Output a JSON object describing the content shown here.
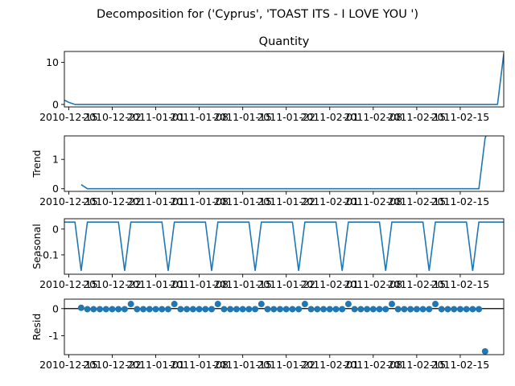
{
  "figure": {
    "suptitle": "Decomposition for ('Cyprus', 'TOAST ITS - I LOVE YOU ')",
    "series_color": "#1f77b4"
  },
  "chart_data": [
    {
      "type": "line",
      "title": "Quantity",
      "ylabel": "",
      "ylim": [
        -0.6,
        12.6
      ],
      "yticks": [
        0,
        10
      ],
      "xlim": [
        -0.7,
        70.0
      ],
      "xticks": [
        0,
        7,
        14,
        21,
        28,
        35,
        42,
        49,
        56,
        63
      ],
      "xticklabels": [
        "2010-12-15",
        "2010-12-22",
        "2011-01-01",
        "2011-01-08",
        "2011-01-15",
        "2011-01-22",
        "2011-02-01",
        "2011-02-08",
        "2011-02-15",
        "2011-02-15"
      ],
      "x": [
        -0.7,
        0,
        1,
        68,
        69,
        70
      ],
      "y": [
        1,
        0.5,
        0,
        0,
        0,
        12
      ]
    },
    {
      "type": "line",
      "title": "",
      "ylabel": "Trend",
      "ylim": [
        -0.09,
        1.8
      ],
      "yticks": [
        0,
        1
      ],
      "xlim": [
        -0.7,
        70.0
      ],
      "xticks": [
        0,
        7,
        14,
        21,
        28,
        35,
        42,
        49,
        56,
        63
      ],
      "xticklabels": [
        "2010-12-15",
        "2010-12-22",
        "2011-01-01",
        "2011-01-08",
        "2011-01-15",
        "2011-01-22",
        "2011-02-01",
        "2011-02-08",
        "2011-02-15",
        "2011-02-15"
      ],
      "x": [
        2,
        3,
        66,
        67,
        70
      ],
      "y": [
        0.14,
        0,
        0,
        1.72,
        3.4
      ]
    },
    {
      "type": "line",
      "title": "",
      "ylabel": "Seasonal",
      "ylim": [
        -0.175,
        0.04
      ],
      "yticks": [
        0.0,
        -0.1
      ],
      "xlim": [
        -0.7,
        70.0
      ],
      "xticks": [
        0,
        7,
        14,
        21,
        28,
        35,
        42,
        49,
        56,
        63
      ],
      "xticklabels": [
        "2010-12-15",
        "2010-12-22",
        "2011-01-01",
        "2011-01-08",
        "2011-01-15",
        "2011-01-22",
        "2011-02-01",
        "2011-02-08",
        "2011-02-15",
        "2011-02-15"
      ],
      "period": 7,
      "high": 0.027,
      "low": -0.162,
      "low_offset": 2
    },
    {
      "type": "scatter",
      "title": "",
      "ylabel": "Resid",
      "ylim": [
        -1.7,
        0.35
      ],
      "yticks": [
        0,
        -1
      ],
      "xlim": [
        -0.7,
        70.0
      ],
      "xticks": [
        0,
        7,
        14,
        21,
        28,
        35,
        42,
        49,
        56,
        63
      ],
      "xticklabels": [
        "2010-12-15",
        "2010-12-22",
        "2011-01-01",
        "2011-01-08",
        "2011-01-15",
        "2011-01-22",
        "2011-02-01",
        "2011-02-08",
        "2011-02-15",
        "2011-02-15"
      ],
      "zero_line": true,
      "x": [
        2,
        3,
        4,
        5,
        6,
        7,
        8,
        9,
        10,
        11,
        12,
        13,
        14,
        15,
        16,
        17,
        18,
        19,
        20,
        21,
        22,
        23,
        24,
        25,
        26,
        27,
        28,
        29,
        30,
        31,
        32,
        33,
        34,
        35,
        36,
        37,
        38,
        39,
        40,
        41,
        42,
        43,
        44,
        45,
        46,
        47,
        48,
        49,
        50,
        51,
        52,
        53,
        54,
        55,
        56,
        57,
        58,
        59,
        60,
        61,
        62,
        63,
        64,
        65,
        66,
        67
      ],
      "y": [
        0.03,
        -0.02,
        -0.02,
        -0.02,
        -0.02,
        -0.02,
        -0.02,
        -0.02,
        0.17,
        -0.02,
        -0.02,
        -0.02,
        -0.02,
        -0.02,
        -0.02,
        0.17,
        -0.02,
        -0.02,
        -0.02,
        -0.02,
        -0.02,
        -0.02,
        0.17,
        -0.02,
        -0.02,
        -0.02,
        -0.02,
        -0.02,
        -0.02,
        0.17,
        -0.02,
        -0.02,
        -0.02,
        -0.02,
        -0.02,
        -0.02,
        0.17,
        -0.02,
        -0.02,
        -0.02,
        -0.02,
        -0.02,
        -0.02,
        0.17,
        -0.02,
        -0.02,
        -0.02,
        -0.02,
        -0.02,
        -0.02,
        0.17,
        -0.02,
        -0.02,
        -0.02,
        -0.02,
        -0.02,
        -0.02,
        0.17,
        -0.02,
        -0.02,
        -0.02,
        -0.02,
        -0.02,
        -0.02,
        -0.02,
        -1.58
      ]
    }
  ]
}
